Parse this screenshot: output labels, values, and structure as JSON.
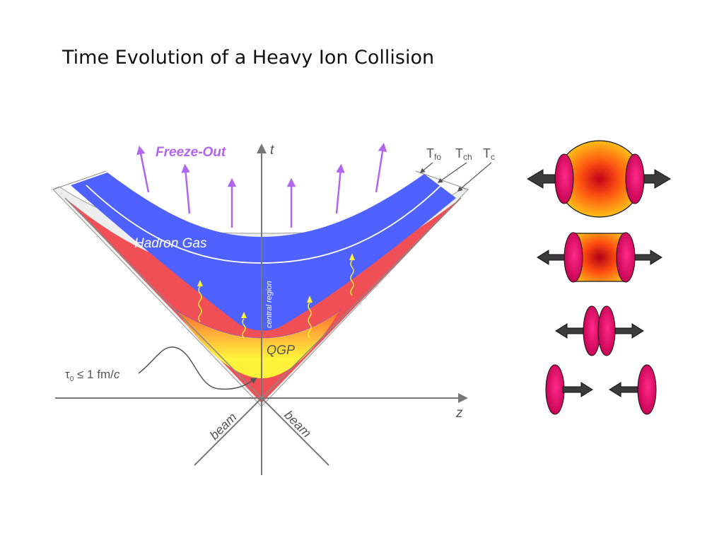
{
  "title": "Time Evolution of a Heavy Ion Collision",
  "labels": {
    "freeze_out": "Freeze-Out",
    "t_axis": "t",
    "z_axis": "z",
    "beam_left": "beam",
    "beam_right": "beam",
    "hadron_gas": "Hadron Gas",
    "central_region": "central region",
    "qgp": "QGP",
    "tau_prefix": "τ",
    "tau_sub": "0",
    "tau_rest": " ≤ 1 fm/",
    "tau_c": "c",
    "T_fo_main": "T",
    "T_fo_sub": "fo",
    "T_ch_main": "T",
    "T_ch_sub": "ch",
    "T_c_main": "T",
    "T_c_sub": "c"
  },
  "colors": {
    "hadron_gas": "#4f62ff",
    "mixed_phase": "#ef4f55",
    "qgp": "#fff23a",
    "freeze_out_arrow": "#b266ee",
    "axis": "#777777",
    "nucleus": "#d4005a",
    "arrow": "#3b3b3b"
  }
}
